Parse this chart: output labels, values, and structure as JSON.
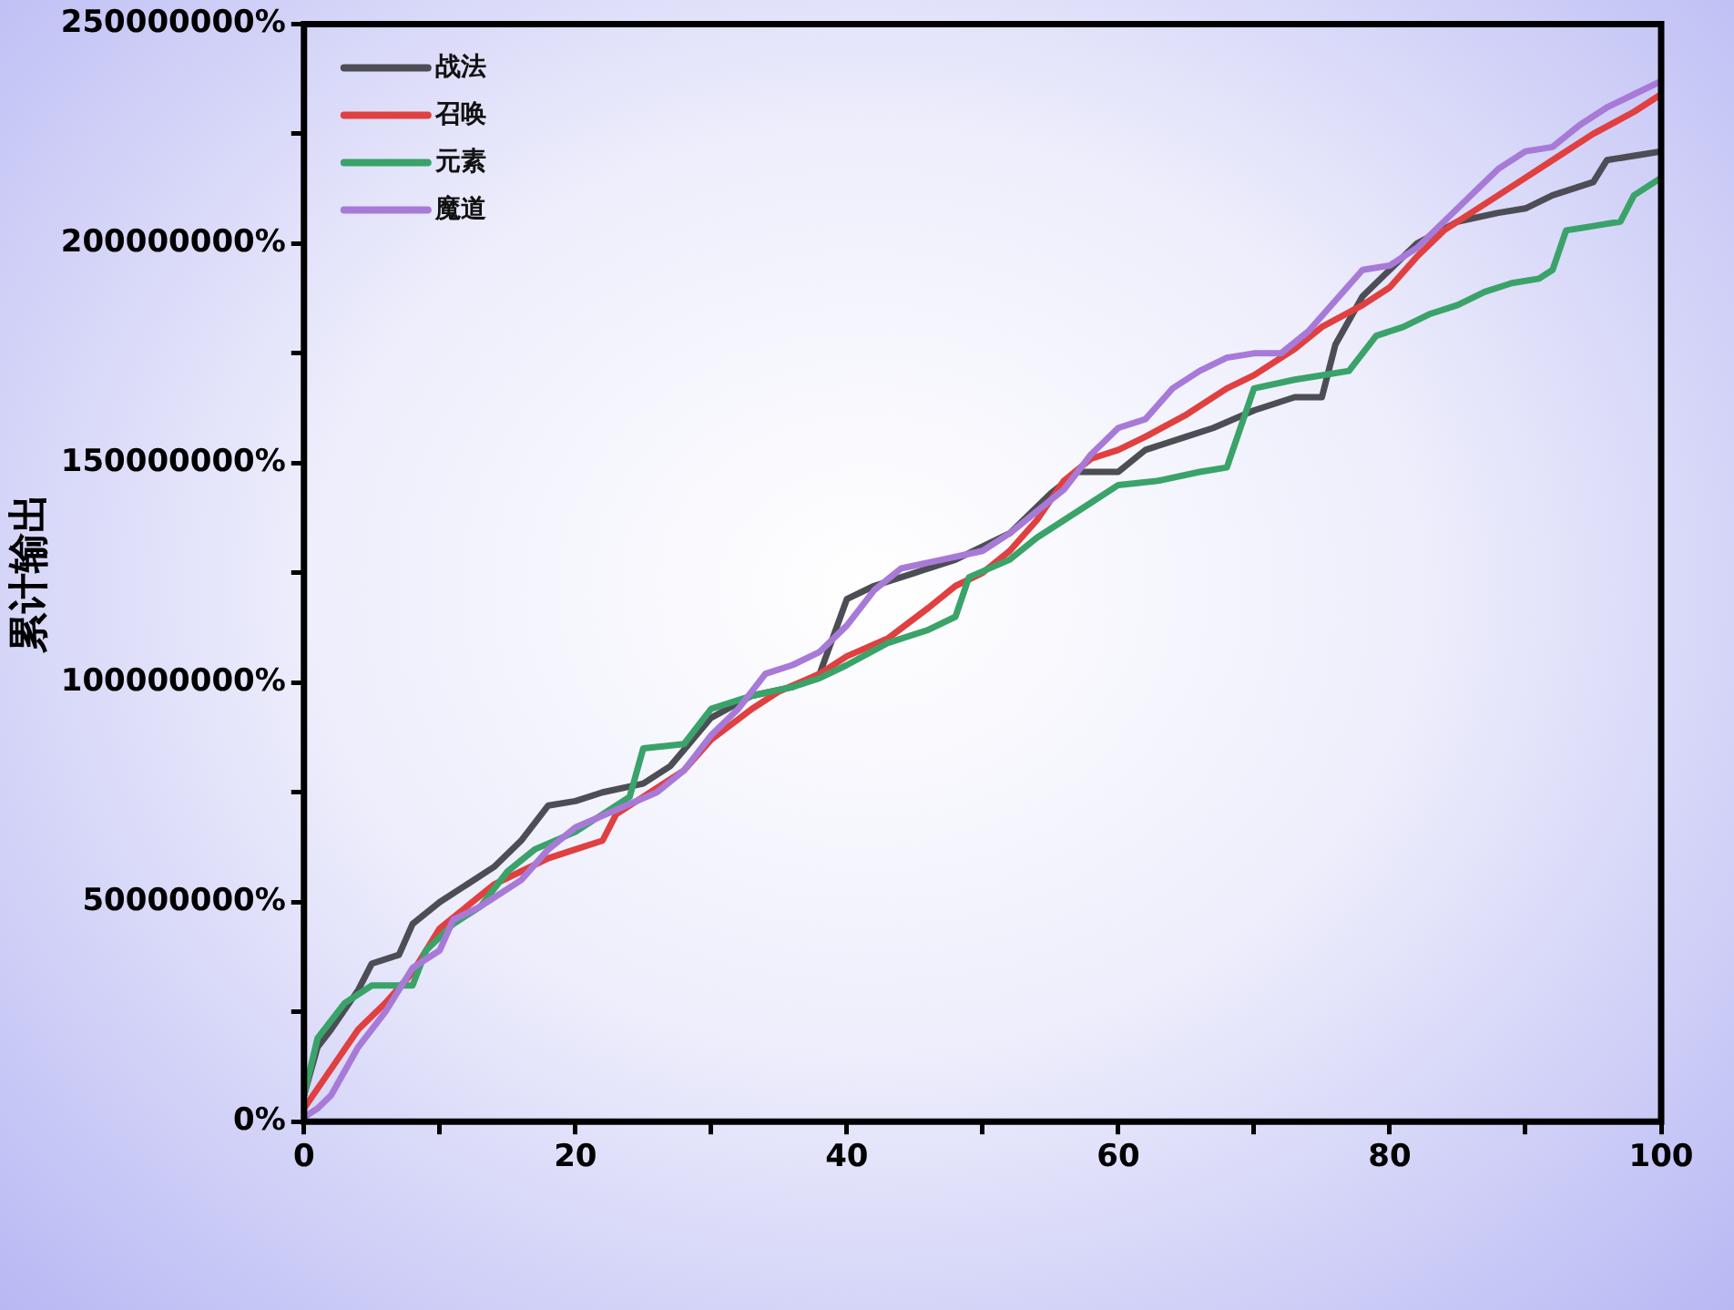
{
  "chart_data": {
    "type": "line",
    "ylabel": "累计输出",
    "xlim": [
      0,
      100
    ],
    "xticks": [
      0,
      {
        "value": 10,
        "label": null
      },
      20,
      {
        "value": 30,
        "label": null
      },
      40,
      {
        "value": 50,
        "label": null
      },
      60,
      {
        "value": 70,
        "label": null
      },
      80,
      {
        "value": 90,
        "label": null
      },
      100
    ],
    "ylim": [
      0,
      250000000
    ],
    "yticks": [
      {
        "value": 0,
        "label": "0%"
      },
      {
        "value": 25000000,
        "label": null
      },
      {
        "value": 50000000,
        "label": "50000000%"
      },
      {
        "value": 75000000,
        "label": null
      },
      {
        "value": 100000000,
        "label": "100000000%"
      },
      {
        "value": 125000000,
        "label": null
      },
      {
        "value": 150000000,
        "label": "150000000%"
      },
      {
        "value": 175000000,
        "label": null
      },
      {
        "value": 200000000,
        "label": "200000000%"
      },
      {
        "value": 225000000,
        "label": null
      },
      {
        "value": 250000000,
        "label": "250000000%"
      }
    ],
    "grid": false,
    "legend": "top left",
    "marker": "none",
    "line_style": "solid",
    "series": [
      {
        "name": "战法",
        "color": "#4d4d55",
        "x": [
          0,
          1,
          2,
          4,
          5,
          7,
          8,
          10,
          12,
          14,
          16,
          18,
          20,
          22,
          25,
          27,
          30,
          33,
          36,
          38,
          40,
          42,
          45,
          48,
          50,
          52,
          55,
          57,
          60,
          62,
          65,
          67,
          70,
          73,
          75,
          76,
          78,
          80,
          82,
          85,
          88,
          90,
          92,
          95,
          96,
          100
        ],
        "values": [
          6000000,
          17000000,
          21000000,
          30000000,
          36000000,
          38000000,
          45000000,
          50000000,
          54000000,
          58000000,
          64000000,
          72000000,
          73000000,
          75000000,
          77000000,
          81000000,
          92000000,
          97000000,
          99000000,
          102000000,
          119000000,
          122000000,
          125000000,
          128000000,
          131000000,
          134000000,
          143000000,
          148000000,
          148000000,
          153000000,
          156000000,
          158000000,
          162000000,
          165000000,
          165000000,
          177000000,
          188000000,
          194000000,
          200000000,
          205000000,
          207000000,
          208000000,
          211000000,
          214000000,
          219000000,
          221000000
        ]
      },
      {
        "name": "召唤",
        "color": "#e04040",
        "x": [
          0,
          2,
          4,
          6,
          8,
          10,
          12,
          14,
          16,
          18,
          20,
          22,
          23,
          25,
          28,
          30,
          33,
          35,
          38,
          40,
          43,
          46,
          48,
          50,
          52,
          54,
          56,
          58,
          60,
          62,
          65,
          68,
          70,
          73,
          75,
          78,
          80,
          82,
          84,
          86,
          88,
          90,
          92,
          95,
          98,
          100
        ],
        "values": [
          3000000,
          12000000,
          21000000,
          27000000,
          34000000,
          44000000,
          49000000,
          54000000,
          57000000,
          60000000,
          62000000,
          64000000,
          70000000,
          74000000,
          80000000,
          87000000,
          94000000,
          98000000,
          102000000,
          106000000,
          110000000,
          117000000,
          122000000,
          125000000,
          130000000,
          137000000,
          146000000,
          151000000,
          153000000,
          156000000,
          161000000,
          167000000,
          170000000,
          176000000,
          181000000,
          186000000,
          190000000,
          197000000,
          203000000,
          207000000,
          211000000,
          215000000,
          219000000,
          225000000,
          230000000,
          234000000
        ]
      },
      {
        "name": "元素",
        "color": "#3aa36a",
        "x": [
          0,
          1,
          3,
          5,
          8,
          9,
          11,
          13,
          15,
          17,
          20,
          24,
          25,
          28,
          30,
          33,
          36,
          38,
          40,
          43,
          46,
          48,
          49,
          52,
          54,
          56,
          58,
          60,
          63,
          66,
          68,
          70,
          73,
          75,
          77,
          79,
          81,
          83,
          85,
          87,
          89,
          91,
          92,
          93,
          95,
          97,
          98,
          100
        ],
        "values": [
          6000000,
          19000000,
          27000000,
          31000000,
          31000000,
          39000000,
          45000000,
          49000000,
          57000000,
          62000000,
          66000000,
          74000000,
          85000000,
          86000000,
          94000000,
          97000000,
          99000000,
          101000000,
          104000000,
          109000000,
          112000000,
          115000000,
          124000000,
          128000000,
          133000000,
          137000000,
          141000000,
          145000000,
          146000000,
          148000000,
          149000000,
          167000000,
          169000000,
          170000000,
          171000000,
          179000000,
          181000000,
          184000000,
          186000000,
          189000000,
          191000000,
          192000000,
          194000000,
          203000000,
          204000000,
          205000000,
          211000000,
          215000000
        ]
      },
      {
        "name": "魔道",
        "color": "#a87ad8",
        "x": [
          0,
          1,
          2,
          4,
          6,
          8,
          10,
          11,
          13,
          16,
          18,
          20,
          23,
          26,
          28,
          30,
          32,
          34,
          36,
          38,
          40,
          42,
          44,
          47,
          50,
          52,
          54,
          56,
          58,
          60,
          62,
          64,
          66,
          68,
          70,
          72,
          74,
          76,
          78,
          80,
          82,
          84,
          86,
          88,
          90,
          92,
          94,
          96,
          98,
          100
        ],
        "values": [
          1000000,
          3000000,
          6000000,
          17000000,
          25000000,
          35000000,
          39000000,
          46000000,
          49000000,
          55000000,
          62000000,
          67000000,
          71000000,
          75000000,
          80000000,
          88000000,
          94000000,
          102000000,
          104000000,
          107000000,
          113000000,
          121000000,
          126000000,
          128000000,
          130000000,
          134000000,
          139000000,
          144000000,
          152000000,
          158000000,
          160000000,
          167000000,
          171000000,
          174000000,
          175000000,
          175000000,
          180000000,
          187000000,
          194000000,
          195000000,
          199000000,
          205000000,
          211000000,
          217000000,
          221000000,
          222000000,
          227000000,
          231000000,
          234000000,
          237000000
        ]
      }
    ]
  }
}
